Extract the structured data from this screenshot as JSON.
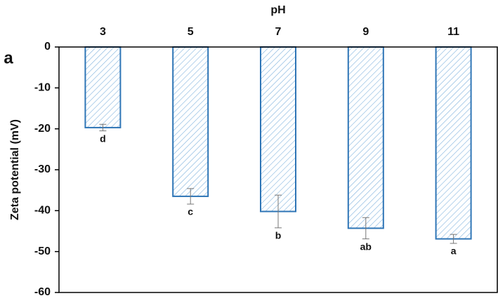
{
  "chart_data": {
    "type": "bar",
    "panel_label": "a",
    "x_label": "pH",
    "y_label": "Zeta potential (mV)",
    "categories": [
      "3",
      "5",
      "7",
      "9",
      "11"
    ],
    "values": [
      -19.7,
      -36.5,
      -40.2,
      -44.3,
      -46.9
    ],
    "errors": [
      0.8,
      1.9,
      4.0,
      2.6,
      1.1
    ],
    "letters": [
      "d",
      "c",
      "b",
      "ab",
      "a"
    ],
    "color": "#2e75b6",
    "ylim": [
      -60,
      0
    ],
    "yticks": [
      0,
      -10,
      -20,
      -30,
      -40,
      -50,
      -60
    ]
  }
}
